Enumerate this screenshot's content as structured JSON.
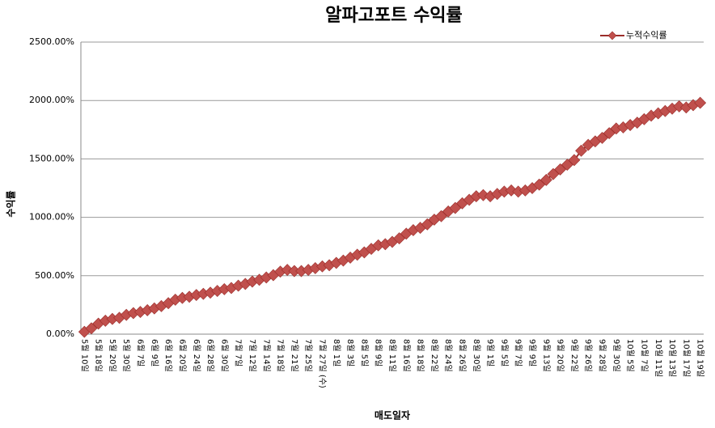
{
  "chart_data": {
    "type": "line",
    "title": "알파고포트 수익률",
    "y_label": "수익률",
    "x_label": "매도일자",
    "legend_position": "top-right",
    "grid": true,
    "ylim": [
      0,
      2500
    ],
    "yticks": [
      {
        "value": 0,
        "label": "0.00%"
      },
      {
        "value": 500,
        "label": "500.00%"
      },
      {
        "value": 1000,
        "label": "1000.00%"
      },
      {
        "value": 1500,
        "label": "1500.00%"
      },
      {
        "value": 2000,
        "label": "2000.00%"
      },
      {
        "value": 2500,
        "label": "2500.00%"
      }
    ],
    "categories": [
      "5월 10일",
      null,
      "5월 18일",
      null,
      "5월 20일",
      null,
      "5월 30일",
      null,
      "6월 7일",
      null,
      "6월 9일",
      null,
      "6월 16일",
      null,
      "6월 20일",
      null,
      "6월 24일",
      null,
      "6월 28일",
      null,
      "6월 30일",
      null,
      "7월 7일",
      null,
      "7월 12일",
      null,
      "7월 14일",
      null,
      "7월 18일",
      null,
      "7월 21일",
      null,
      "7월 25일",
      null,
      "7월 27일 (수)",
      null,
      "8월 1일",
      null,
      "8월 3일",
      null,
      "8월 5일",
      null,
      "8월 9일",
      null,
      "8월 11일",
      null,
      "8월 16일",
      null,
      "8월 18일",
      null,
      "8월 22일",
      null,
      "8월 24일",
      null,
      "8월 26일",
      null,
      "8월 30일",
      null,
      "9월 1일",
      null,
      "9월 5일",
      null,
      "9월 7일",
      null,
      "9월 9일",
      null,
      "9월 13일",
      null,
      "9월 20일",
      null,
      "9월 22일",
      null,
      "9월 26일",
      null,
      "9월 28일",
      null,
      "9월 30일",
      null,
      "10월 5일",
      null,
      "10월 7일",
      null,
      "10월 11일",
      null,
      "10월 13일",
      null,
      "10월 17일",
      null,
      "10월 19일"
    ],
    "series": [
      {
        "name": "누적수익률",
        "color": "#c0504d",
        "values": [
          20,
          50,
          90,
          115,
          130,
          140,
          165,
          180,
          190,
          205,
          220,
          240,
          265,
          295,
          310,
          320,
          335,
          345,
          355,
          370,
          385,
          395,
          415,
          430,
          450,
          465,
          485,
          505,
          535,
          550,
          540,
          540,
          550,
          565,
          580,
          590,
          610,
          630,
          655,
          680,
          700,
          730,
          760,
          770,
          790,
          820,
          860,
          890,
          910,
          940,
          980,
          1010,
          1050,
          1080,
          1120,
          1150,
          1180,
          1190,
          1180,
          1200,
          1220,
          1230,
          1220,
          1230,
          1250,
          1280,
          1320,
          1370,
          1410,
          1450,
          1490,
          1570,
          1620,
          1650,
          1680,
          1720,
          1760,
          1770,
          1790,
          1810,
          1840,
          1870,
          1890,
          1910,
          1930,
          1950,
          1940,
          1960,
          1980
        ]
      }
    ]
  }
}
